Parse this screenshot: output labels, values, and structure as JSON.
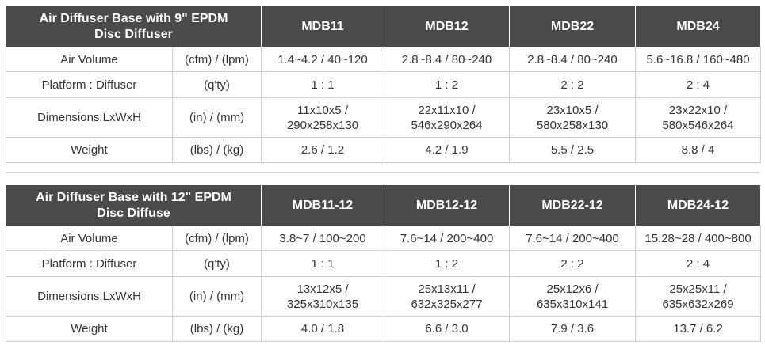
{
  "tables": [
    {
      "title": [
        "Air Diffuser Base with 9\" EPDM",
        "Disc Diffuser"
      ],
      "models": [
        "MDB11",
        "MDB12",
        "MDB22",
        "MDB24"
      ],
      "rows": [
        {
          "label": "Air Volume",
          "unit": "(cfm) / (lpm)",
          "values": [
            [
              "1.4~4.2 / 40~120"
            ],
            [
              "2.8~8.4 / 80~240"
            ],
            [
              "2.8~8.4 / 80~240"
            ],
            [
              "5.6~16.8 / 160~480"
            ]
          ]
        },
        {
          "label": "Platform : Diffuser",
          "unit": "(q'ty)",
          "values": [
            [
              "1 : 1"
            ],
            [
              "1 : 2"
            ],
            [
              "2 : 2"
            ],
            [
              "2 : 4"
            ]
          ]
        },
        {
          "label": "Dimensions:LxWxH",
          "unit": "(in) / (mm)",
          "values": [
            [
              "11x10x5 /",
              "290x258x130"
            ],
            [
              "22x11x10 /",
              "546x290x264"
            ],
            [
              "23x10x5 /",
              "580x258x130"
            ],
            [
              "23x22x10 /",
              "580x546x264"
            ]
          ]
        },
        {
          "label": "Weight",
          "unit": "(lbs) / (kg)",
          "values": [
            [
              "2.6 / 1.2"
            ],
            [
              "4.2 / 1.9"
            ],
            [
              "5.5 / 2.5"
            ],
            [
              "8.8 / 4"
            ]
          ]
        }
      ]
    },
    {
      "title": [
        "Air Diffuser Base with 12\" EPDM",
        "Disc Diffuse"
      ],
      "models": [
        "MDB11-12",
        "MDB12-12",
        "MDB22-12",
        "MDB24-12"
      ],
      "rows": [
        {
          "label": "Air Volume",
          "unit": "(cfm) / (lpm)",
          "values": [
            [
              "3.8~7 / 100~200"
            ],
            [
              "7.6~14 / 200~400"
            ],
            [
              "7.6~14 / 200~400"
            ],
            [
              "15.28~28 / 400~800"
            ]
          ]
        },
        {
          "label": "Platform : Diffuser",
          "unit": "(q'ty)",
          "values": [
            [
              "1 : 1"
            ],
            [
              "1 : 2"
            ],
            [
              "2 : 2"
            ],
            [
              "2 : 4"
            ]
          ]
        },
        {
          "label": "Dimensions:LxWxH",
          "unit": "(in) / (mm)",
          "values": [
            [
              "13x12x5 /",
              "325x310x135"
            ],
            [
              "25x13x11 /",
              "632x325x277"
            ],
            [
              "25x12x6 /",
              "635x310x141"
            ],
            [
              "25x25x11 /",
              "635x632x269"
            ]
          ]
        },
        {
          "label": "Weight",
          "unit": "(lbs) / (kg)",
          "values": [
            [
              "4.0 / 1.8"
            ],
            [
              "6.6 / 3.0"
            ],
            [
              "7.9 / 3.6"
            ],
            [
              "13.7 / 6.2"
            ]
          ]
        }
      ]
    }
  ],
  "colors": {
    "header_bg": "#4a4a4a",
    "header_text": "#ffffff",
    "border": "#cfcfcf",
    "text": "#333333"
  }
}
